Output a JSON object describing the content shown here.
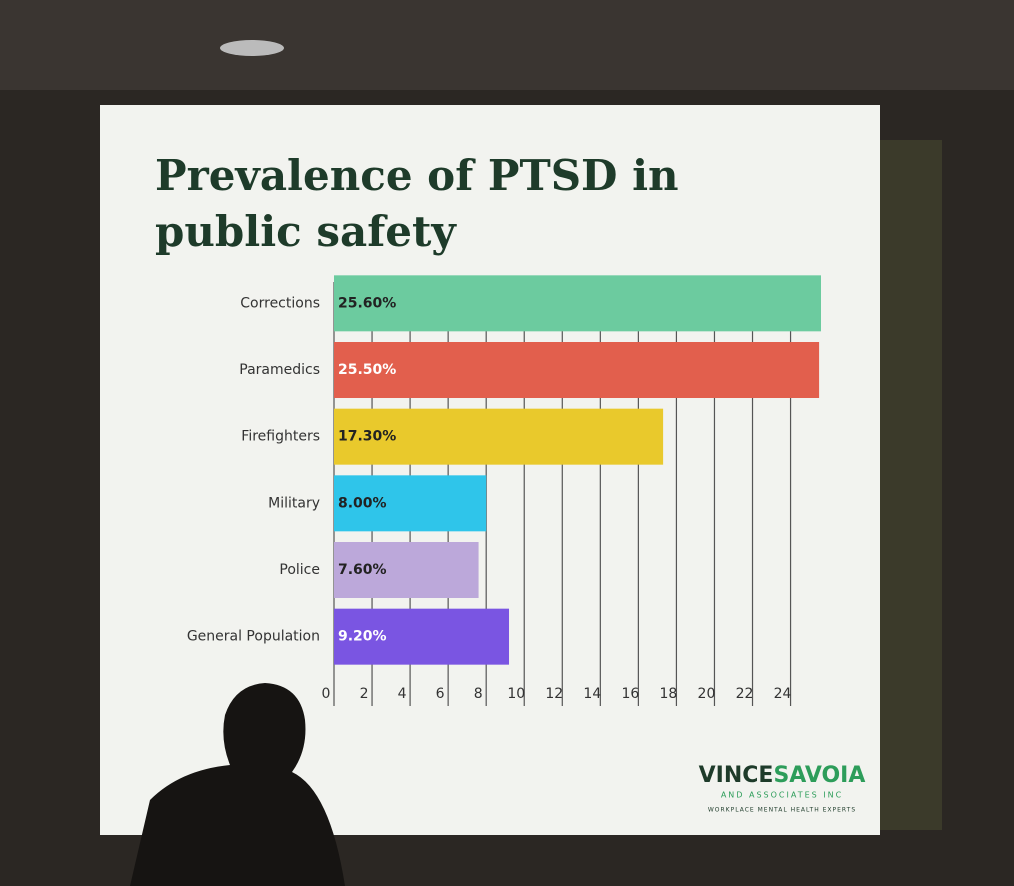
{
  "chart_data": {
    "type": "barh",
    "title": "Prevalence of PTSD in public safety",
    "categories": [
      "Corrections",
      "Paramedics",
      "Firefighters",
      "Military",
      "Police",
      "General Population"
    ],
    "values": [
      25.6,
      25.5,
      17.3,
      8.0,
      7.6,
      9.2
    ],
    "value_labels": [
      "25.60%",
      "25.50%",
      "17.30%",
      "8.00%",
      "7.60%",
      "9.20%"
    ],
    "colors": [
      "#6ccb9f",
      "#e25f4d",
      "#e9c92c",
      "#2fc5ea",
      "#bca8da",
      "#7a55e2"
    ],
    "xlim": [
      0,
      25.6
    ],
    "xticks": [
      0,
      2,
      4,
      6,
      8,
      10,
      12,
      14,
      16,
      18,
      20,
      22,
      24
    ],
    "grid": true
  },
  "footer": {
    "brand_first": "VINCE",
    "brand_second": "SAVOIA",
    "tagline": "AND ASSOCIATES INC",
    "motto": "WORKPLACE MENTAL HEALTH EXPERTS"
  }
}
